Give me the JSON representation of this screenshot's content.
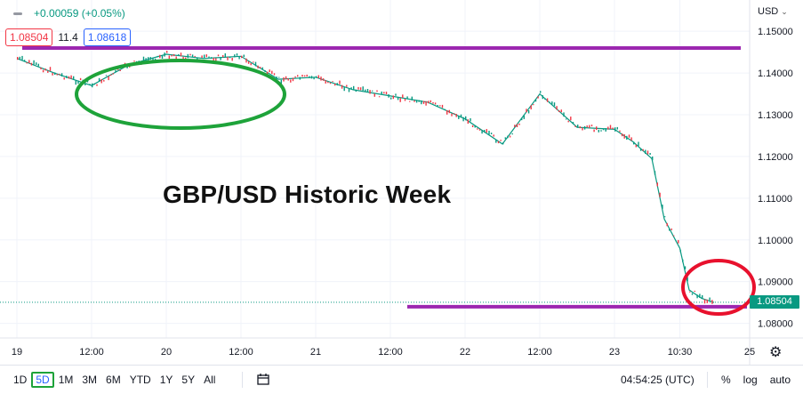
{
  "header": {
    "change": "+0.00059 (+0.05%)",
    "bid": "1.08504",
    "spread": "11.4",
    "ask": "1.08618",
    "currency": "USD"
  },
  "annotation_title": "GBP/USD Historic Week",
  "last_price_label": "1.08504",
  "toolbar": {
    "ranges": [
      "1D",
      "5D",
      "1M",
      "3M",
      "6M",
      "YTD",
      "1Y",
      "5Y",
      "All"
    ],
    "active_range": "5D",
    "time": "04:54:25 (UTC)",
    "percent_label": "%",
    "log_label": "log",
    "auto_label": "auto"
  },
  "colors": {
    "up": "#089981",
    "down": "#f23645",
    "resistance_line": "#9c27b0",
    "highlight_top": "#1ea33a",
    "highlight_bottom": "#e8112d"
  },
  "chart_data": {
    "type": "line",
    "symbol": "GBP/USD",
    "interval": "5D",
    "ylim": [
      1.0765,
      1.1575
    ],
    "y_ticks": [
      "1.15000",
      "1.14000",
      "1.13000",
      "1.12000",
      "1.11000",
      "1.10000",
      "1.09000",
      "1.08000"
    ],
    "x_ticks": [
      "19",
      "12:00",
      "20",
      "12:00",
      "21",
      "12:00",
      "22",
      "12:00",
      "23",
      "10:30",
      "25"
    ],
    "x": [
      "19 00:00",
      "19 06:00",
      "19 12:00",
      "19 18:00",
      "20 00:00",
      "20 06:00",
      "20 12:00",
      "20 18:00",
      "21 00:00",
      "21 06:00",
      "21 12:00",
      "21 18:00",
      "22 00:00",
      "22 06:00",
      "22 12:00",
      "22 18:00",
      "23 00:00",
      "23 03:00",
      "23 06:00",
      "23 08:00",
      "23 10:30",
      "23 12:00",
      "23 14:00",
      "23 16:00"
    ],
    "series": [
      {
        "values": [
          1.1435,
          1.14,
          1.137,
          1.142,
          1.1445,
          1.1435,
          1.144,
          1.1385,
          1.139,
          1.136,
          1.1345,
          1.133,
          1.129,
          1.123,
          1.135,
          1.127,
          1.1265,
          1.1235,
          1.1195,
          1.105,
          1.098,
          1.088,
          1.086,
          1.085
        ]
      }
    ],
    "horizontal_lines": [
      1.146,
      1.084
    ],
    "last_price": 1.08504,
    "title": "GBP/USD Historic Week"
  }
}
